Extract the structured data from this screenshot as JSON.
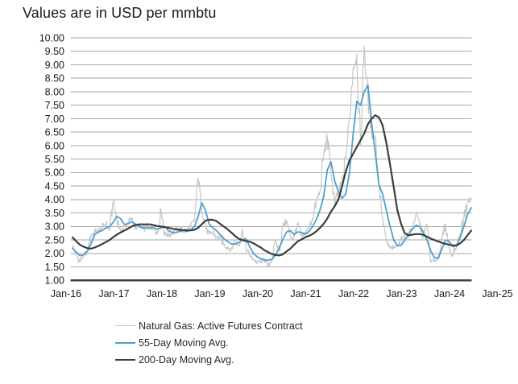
{
  "title": "Values are in USD per mmbtu",
  "colors": {
    "background": "#ffffff",
    "gridline": "#a6a6a6",
    "axis_line": "#3f3f3f",
    "text": "#1a1a1a",
    "legend_text": "#262626",
    "series_futures": "#c6c6c6",
    "series_55day": "#4f9fce",
    "series_200day": "#3d3d3d"
  },
  "chart_data": {
    "type": "line",
    "title": "Values are in USD per mmbtu",
    "xlabel": "",
    "ylabel": "",
    "grid": true,
    "legend_position": "bottom",
    "x_axis": {
      "start": "Jan-2016",
      "end": "Jan-2025",
      "frequency": "monthly",
      "tick_labels": [
        "Jan-16",
        "Jan-17",
        "Jan-18",
        "Jan-19",
        "Jan-20",
        "Jan-21",
        "Jan-22",
        "Jan-23",
        "Jan-24",
        "Jan-25"
      ]
    },
    "y_axis": {
      "min": 1.0,
      "max": 10.0,
      "step": 0.5,
      "tick_labels": [
        "10.00",
        "9.50",
        "9.00",
        "8.50",
        "8.00",
        "7.50",
        "7.00",
        "6.50",
        "6.00",
        "5.50",
        "5.00",
        "4.50",
        "4.00",
        "3.50",
        "3.00",
        "2.50",
        "2.00",
        "1.50",
        "1.00"
      ]
    },
    "series": [
      {
        "name": "Natural Gas: Active Futures Contract",
        "color": "#c6c6c6",
        "line_width": 1.2,
        "style": "noisy-daily",
        "values": [
          2.3,
          1.95,
          1.7,
          1.95,
          2.05,
          2.65,
          2.8,
          2.85,
          2.95,
          3.1,
          2.85,
          3.9,
          3.3,
          2.85,
          3.0,
          3.15,
          3.25,
          3.0,
          2.95,
          2.9,
          3.0,
          2.9,
          3.05,
          2.75,
          3.6,
          2.7,
          2.7,
          2.75,
          2.85,
          2.95,
          2.8,
          2.9,
          3.0,
          3.2,
          4.8,
          3.7,
          3.0,
          2.7,
          2.8,
          2.6,
          2.6,
          2.3,
          2.25,
          2.15,
          2.5,
          2.3,
          2.9,
          2.2,
          1.9,
          1.8,
          1.65,
          1.7,
          1.8,
          1.5,
          1.8,
          2.45,
          2.1,
          3.0,
          3.2,
          2.6,
          2.6,
          3.15,
          2.6,
          2.75,
          2.95,
          3.3,
          3.9,
          4.3,
          5.6,
          6.3,
          5.0,
          3.8,
          4.3,
          4.6,
          5.5,
          7.0,
          8.9,
          9.4,
          6.0,
          9.68,
          7.8,
          6.5,
          6.3,
          4.6,
          3.3,
          2.45,
          2.2,
          2.2,
          2.3,
          2.5,
          2.6,
          2.75,
          2.9,
          3.5,
          3.1,
          2.6,
          3.1,
          1.65,
          1.75,
          1.8,
          2.5,
          3.1,
          2.2,
          1.95,
          2.3,
          2.75,
          3.35,
          3.9,
          4.0
        ]
      },
      {
        "name": "55-Day Moving Avg.",
        "color": "#4f9fce",
        "line_width": 1.8,
        "style": "smooth",
        "values": [
          2.2,
          2.05,
          1.92,
          1.95,
          2.08,
          2.35,
          2.7,
          2.8,
          2.85,
          2.95,
          3.0,
          3.15,
          3.38,
          3.3,
          3.08,
          3.1,
          3.18,
          3.1,
          3.02,
          2.95,
          2.95,
          2.95,
          2.95,
          2.9,
          2.95,
          3.0,
          2.85,
          2.78,
          2.78,
          2.82,
          2.85,
          2.82,
          2.88,
          3.0,
          3.35,
          3.88,
          3.6,
          3.1,
          2.95,
          2.85,
          2.7,
          2.55,
          2.45,
          2.35,
          2.35,
          2.4,
          2.5,
          2.55,
          2.25,
          2.0,
          1.88,
          1.8,
          1.76,
          1.75,
          1.78,
          1.95,
          2.2,
          2.55,
          2.8,
          2.85,
          2.7,
          2.8,
          2.78,
          2.72,
          2.8,
          3.0,
          3.25,
          3.6,
          4.1,
          5.1,
          5.4,
          4.7,
          4.3,
          4.05,
          4.2,
          5.0,
          6.4,
          7.65,
          7.5,
          8.0,
          8.25,
          6.85,
          5.75,
          4.55,
          4.2,
          3.6,
          3.0,
          2.5,
          2.3,
          2.3,
          2.5,
          2.7,
          2.9,
          3.05,
          3.0,
          2.8,
          2.5,
          2.1,
          1.85,
          1.82,
          2.15,
          2.5,
          2.45,
          2.25,
          2.3,
          2.6,
          3.0,
          3.45,
          3.7
        ]
      },
      {
        "name": "200-Day Moving Avg.",
        "color": "#3d3d3d",
        "line_width": 2.2,
        "style": "smooth",
        "values": [
          2.6,
          2.45,
          2.33,
          2.25,
          2.2,
          2.18,
          2.22,
          2.28,
          2.35,
          2.42,
          2.5,
          2.6,
          2.7,
          2.78,
          2.85,
          2.92,
          3.0,
          3.05,
          3.08,
          3.08,
          3.08,
          3.08,
          3.05,
          3.02,
          3.0,
          2.98,
          2.95,
          2.92,
          2.9,
          2.88,
          2.87,
          2.86,
          2.86,
          2.88,
          2.95,
          3.08,
          3.22,
          3.25,
          3.25,
          3.2,
          3.1,
          3.0,
          2.9,
          2.78,
          2.65,
          2.55,
          2.5,
          2.46,
          2.44,
          2.38,
          2.3,
          2.22,
          2.12,
          2.05,
          1.98,
          1.94,
          1.93,
          1.97,
          2.08,
          2.18,
          2.32,
          2.45,
          2.52,
          2.6,
          2.65,
          2.72,
          2.82,
          2.95,
          3.1,
          3.3,
          3.55,
          3.75,
          4.0,
          4.5,
          5.05,
          5.45,
          5.7,
          5.95,
          6.2,
          6.45,
          6.8,
          7.0,
          7.13,
          7.05,
          6.75,
          6.1,
          5.3,
          4.45,
          3.6,
          3.1,
          2.75,
          2.67,
          2.7,
          2.72,
          2.72,
          2.7,
          2.62,
          2.56,
          2.5,
          2.45,
          2.4,
          2.36,
          2.33,
          2.3,
          2.3,
          2.38,
          2.5,
          2.68,
          2.85
        ]
      }
    ]
  }
}
